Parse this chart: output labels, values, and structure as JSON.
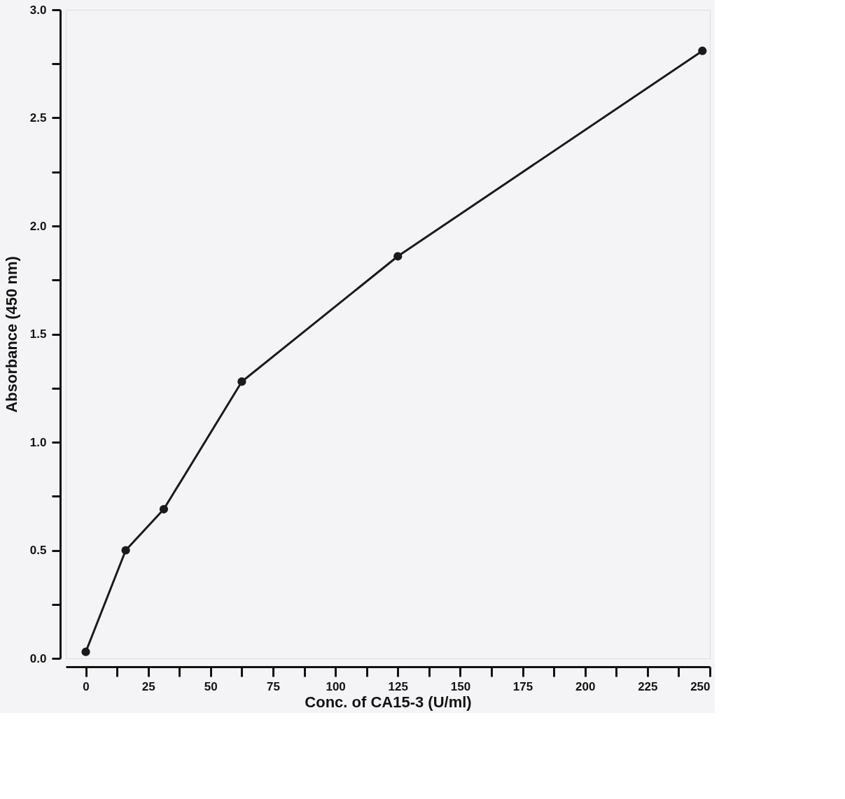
{
  "chart_data": {
    "type": "line",
    "xlabel": "Conc. of CA15-3 (U/ml)",
    "ylabel": "Absorbance (450 nm)",
    "x": [
      0,
      16,
      31.25,
      62.5,
      125,
      247
    ],
    "series": [
      {
        "color": "#1a1a1a",
        "values": [
          0.03,
          0.5,
          0.69,
          1.28,
          1.86,
          2.81
        ]
      }
    ],
    "xlim": [
      -8,
      250
    ],
    "xticks": [
      0,
      {
        "value": 12.5,
        "label": null
      },
      25,
      {
        "value": 37.5,
        "label": null
      },
      50,
      {
        "value": 62.5,
        "label": null
      },
      75,
      {
        "value": 87.5,
        "label": null
      },
      100,
      {
        "value": 112.5,
        "label": null
      },
      125,
      {
        "value": 137.5,
        "label": null
      },
      150,
      {
        "value": 162.5,
        "label": null
      },
      175,
      {
        "value": 187.5,
        "label": null
      },
      200,
      {
        "value": 212.5,
        "label": null
      },
      225,
      {
        "value": 237.5,
        "label": null
      },
      250
    ],
    "ylim": [
      0,
      3
    ],
    "yticks": [
      {
        "value": 0,
        "label": "0.0"
      },
      {
        "value": 0.25,
        "label": null
      },
      {
        "value": 0.5,
        "label": "0.5"
      },
      {
        "value": 0.75,
        "label": null
      },
      {
        "value": 1,
        "label": "1.0"
      },
      {
        "value": 1.25,
        "label": null
      },
      {
        "value": 1.5,
        "label": "1.5"
      },
      {
        "value": 1.75,
        "label": null
      },
      {
        "value": 2,
        "label": "2.0"
      },
      {
        "value": 2.25,
        "label": null
      },
      {
        "value": 2.5,
        "label": "2.5"
      },
      {
        "value": 2.75,
        "label": null
      },
      {
        "value": 3,
        "label": "3.0"
      }
    ],
    "grid": false,
    "marker": "circle",
    "line_style": "solid"
  }
}
